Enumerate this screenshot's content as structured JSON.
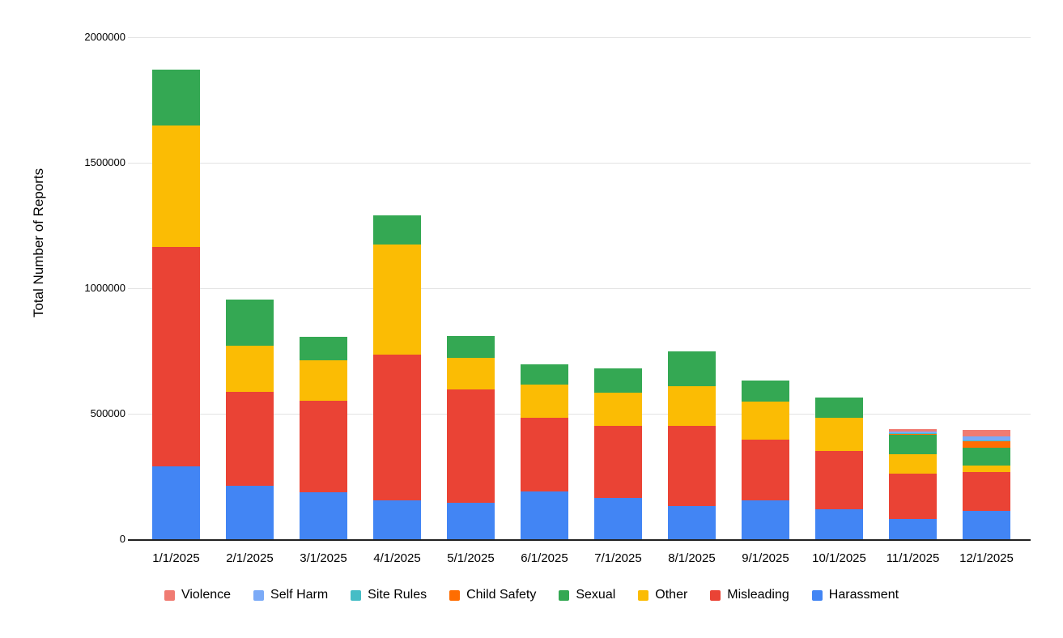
{
  "page": {
    "background": "#ffffff"
  },
  "axis": {
    "gridline_color": "#e3e3e3",
    "baseline_color": "#212121",
    "tick_label_color": "#000000"
  },
  "chart_data": {
    "type": "bar",
    "stacked": true,
    "title": "",
    "xlabel": "",
    "ylabel": "Total Number of Reports",
    "ylim": [
      0,
      2000000
    ],
    "grid": "horizontal",
    "legend_position": "bottom",
    "y_ticks": [
      {
        "value": 0,
        "label": "0"
      },
      {
        "value": 500000,
        "label": "500000"
      },
      {
        "value": 1000000,
        "label": "1000000"
      },
      {
        "value": 1500000,
        "label": "1500000"
      },
      {
        "value": 2000000,
        "label": "2000000"
      }
    ],
    "categories": [
      "1/1/2025",
      "2/1/2025",
      "3/1/2025",
      "4/1/2025",
      "5/1/2025",
      "6/1/2025",
      "7/1/2025",
      "8/1/2025",
      "9/1/2025",
      "10/1/2025",
      "11/1/2025",
      "12/1/2025"
    ],
    "series": [
      {
        "name": "Harassment",
        "color": "#4285f4",
        "values": [
          290000,
          212000,
          187000,
          154000,
          146000,
          189000,
          164000,
          131000,
          154000,
          121000,
          80000,
          114000
        ]
      },
      {
        "name": "Misleading",
        "color": "#ea4335",
        "values": [
          874000,
          374000,
          365000,
          582000,
          451000,
          295000,
          287000,
          321000,
          243000,
          231000,
          180000,
          154000
        ]
      },
      {
        "name": "Other",
        "color": "#fbbc04",
        "values": [
          484000,
          186000,
          162000,
          438000,
          127000,
          132000,
          134000,
          157000,
          150000,
          133000,
          78000,
          26000
        ]
      },
      {
        "name": "Sexual",
        "color": "#34a853",
        "values": [
          222000,
          184000,
          92000,
          118000,
          86000,
          80000,
          97000,
          138000,
          86000,
          79000,
          79000,
          72000
        ]
      },
      {
        "name": "Child Safety",
        "color": "#ff6d01",
        "values": [
          0,
          0,
          0,
          0,
          0,
          0,
          0,
          0,
          0,
          0,
          2500,
          24000
        ]
      },
      {
        "name": "Site Rules",
        "color": "#46bdc6",
        "values": [
          0,
          0,
          0,
          0,
          0,
          0,
          0,
          0,
          0,
          0,
          2500,
          4000
        ]
      },
      {
        "name": "Self Harm",
        "color": "#7baaf7",
        "values": [
          0,
          0,
          0,
          0,
          0,
          0,
          0,
          0,
          0,
          0,
          6500,
          16000
        ]
      },
      {
        "name": "Violence",
        "color": "#f07b72",
        "values": [
          0,
          0,
          0,
          0,
          0,
          0,
          0,
          0,
          0,
          0,
          10000,
          26000
        ]
      }
    ],
    "legend_order": [
      "Violence",
      "Self Harm",
      "Site Rules",
      "Child Safety",
      "Sexual",
      "Other",
      "Misleading",
      "Harassment"
    ]
  }
}
